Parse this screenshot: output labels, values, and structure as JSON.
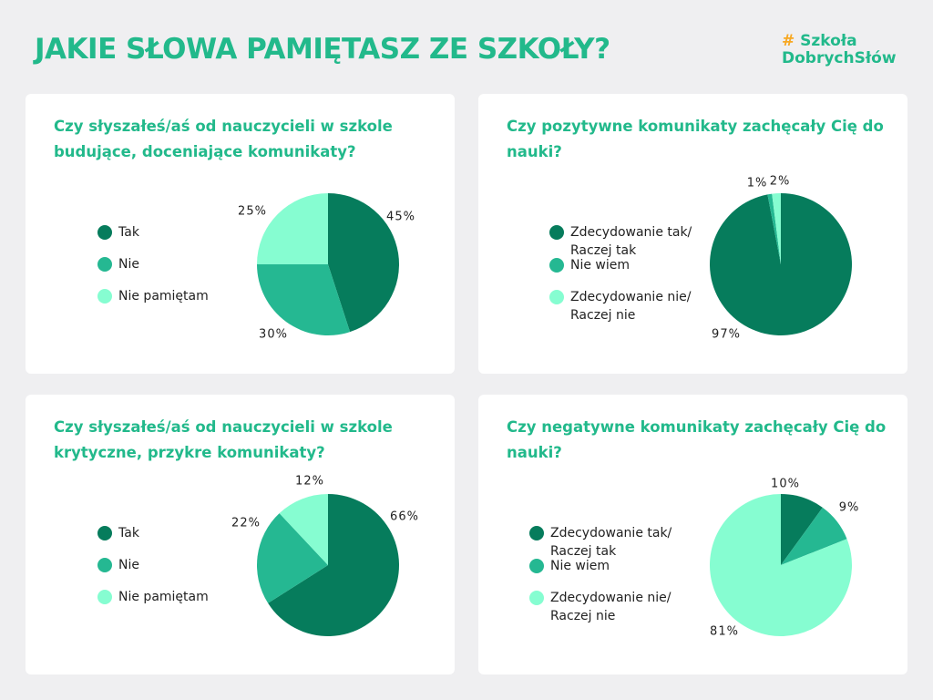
{
  "title": "JAKIE SŁOWA PAMIĘTASZ ZE SZKOŁY?",
  "logo": {
    "hash": "#",
    "line1": "Szkoła",
    "line2": "DobrychSłów"
  },
  "colors": {
    "dark": "#067c5c",
    "mid": "#25b892",
    "light": "#86fdd1",
    "accent": "#22b98b",
    "logo_hash": "#f7a823"
  },
  "chart_data": [
    {
      "type": "pie",
      "title": "Czy słyszałeś/aś od nauczycieli w szkole budujące, doceniające komunikaty?",
      "categories": [
        "Tak",
        "Nie",
        "Nie pamiętam"
      ],
      "values": [
        45,
        30,
        25
      ],
      "labels": [
        "45%",
        "30%",
        "25%"
      ],
      "legend": "left"
    },
    {
      "type": "pie",
      "title": "Czy pozytywne komunikaty zachęcały Cię do nauki?",
      "categories": [
        "Zdecydowanie tak/ Raczej tak",
        "Nie wiem",
        "Zdecydowanie nie/ Raczej nie"
      ],
      "values": [
        97,
        1,
        2
      ],
      "labels": [
        "97%",
        "1%",
        "2%"
      ],
      "legend": "left"
    },
    {
      "type": "pie",
      "title": "Czy słyszałeś/aś od nauczycieli w szkole krytyczne, przykre komunikaty?",
      "categories": [
        "Tak",
        "Nie",
        "Nie pamiętam"
      ],
      "values": [
        66,
        22,
        12
      ],
      "labels": [
        "66%",
        "22%",
        "12%"
      ],
      "legend": "left"
    },
    {
      "type": "pie",
      "title": "Czy negatywne komunikaty zachęcały Cię do nauki?",
      "categories": [
        "Zdecydowanie tak/ Raczej tak",
        "Nie wiem",
        "Zdecydowanie nie/ Raczej nie"
      ],
      "values": [
        10,
        9,
        81
      ],
      "labels": [
        "10%",
        "9%",
        "81%"
      ],
      "legend": "left"
    }
  ]
}
